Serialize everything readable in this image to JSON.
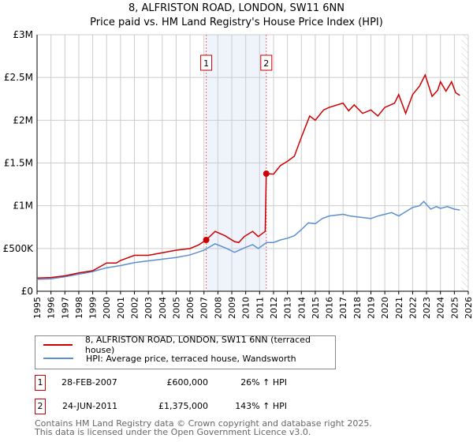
{
  "title_line1": "8, ALFRISTON ROAD, LONDON, SW11 6NN",
  "title_line2": "Price paid vs. HM Land Registry's House Price Index (HPI)",
  "chart_data": {
    "type": "line",
    "xlim": [
      1995,
      2026
    ],
    "ylim": [
      0,
      3000000
    ],
    "x_ticks": [
      "1995",
      "1996",
      "1997",
      "1998",
      "1999",
      "2000",
      "2001",
      "2002",
      "2003",
      "2004",
      "2005",
      "2006",
      "2007",
      "2008",
      "2009",
      "2010",
      "2011",
      "2012",
      "2013",
      "2014",
      "2015",
      "2016",
      "2017",
      "2018",
      "2019",
      "2020",
      "2021",
      "2022",
      "2023",
      "2024",
      "2025",
      "2026"
    ],
    "y_ticks": [
      {
        "v": 0,
        "label": "£0"
      },
      {
        "v": 500000,
        "label": "£500K"
      },
      {
        "v": 1000000,
        "label": "£1M"
      },
      {
        "v": 1500000,
        "label": "£1.5M"
      },
      {
        "v": 2000000,
        "label": "£2M"
      },
      {
        "v": 2500000,
        "label": "£2.5M"
      },
      {
        "v": 3000000,
        "label": "£3M"
      }
    ],
    "grid": true,
    "shaded_range": [
      2007.16,
      2011.48
    ],
    "projection_from": 2025.5,
    "series": [
      {
        "name": "8, ALFRISTON ROAD, LONDON, SW11 6NN (terraced house)",
        "color": "#cc0000",
        "x": [
          1995,
          1996,
          1997,
          1998,
          1999,
          2000,
          2000.7,
          2001,
          2002,
          2003,
          2004,
          2005,
          2006,
          2006.6,
          2007.16,
          2007.8,
          2008.5,
          2009.2,
          2009.5,
          2009.9,
          2010.5,
          2010.9,
          2011.4,
          2011.48,
          2012,
          2012.5,
          2013,
          2013.5,
          2014,
          2014.6,
          2015,
          2015.6,
          2016,
          2017,
          2017.4,
          2017.8,
          2018.4,
          2019,
          2019.5,
          2020,
          2020.7,
          2021,
          2021.5,
          2022,
          2022.5,
          2022.9,
          2023.4,
          2023.8,
          2024,
          2024.4,
          2024.8,
          2025.1,
          2025.4
        ],
        "y": [
          155000,
          160000,
          180000,
          215000,
          240000,
          330000,
          330000,
          360000,
          420000,
          420000,
          450000,
          480000,
          500000,
          540000,
          600000,
          700000,
          650000,
          580000,
          570000,
          640000,
          700000,
          640000,
          700000,
          1375000,
          1370000,
          1470000,
          1520000,
          1580000,
          1800000,
          2050000,
          2000000,
          2120000,
          2150000,
          2200000,
          2110000,
          2180000,
          2080000,
          2120000,
          2050000,
          2150000,
          2200000,
          2300000,
          2080000,
          2300000,
          2400000,
          2530000,
          2280000,
          2350000,
          2450000,
          2340000,
          2450000,
          2320000,
          2290000
        ]
      },
      {
        "name": "HPI: Average price, terraced house, Wandsworth",
        "color": "#5b8fd0",
        "x": [
          1995,
          1996,
          1997,
          1998,
          1999,
          2000,
          2001,
          2002,
          2003,
          2004,
          2005,
          2006,
          2007,
          2007.8,
          2008.5,
          2009.2,
          2009.8,
          2010.5,
          2010.9,
          2011.5,
          2012,
          2012.5,
          2013,
          2013.5,
          2014,
          2014.5,
          2015,
          2015.5,
          2016,
          2017,
          2017.5,
          2018,
          2019,
          2019.5,
          2020,
          2020.5,
          2021,
          2021.5,
          2022,
          2022.5,
          2022.8,
          2023.3,
          2023.7,
          2024,
          2024.5,
          2025,
          2025.4
        ],
        "y": [
          140000,
          145000,
          170000,
          200000,
          230000,
          275000,
          300000,
          335000,
          355000,
          375000,
          395000,
          425000,
          480000,
          555000,
          510000,
          455000,
          500000,
          545000,
          500000,
          570000,
          570000,
          600000,
          620000,
          650000,
          720000,
          800000,
          790000,
          850000,
          880000,
          900000,
          880000,
          870000,
          850000,
          880000,
          900000,
          920000,
          880000,
          930000,
          980000,
          1000000,
          1050000,
          960000,
          990000,
          970000,
          990000,
          960000,
          950000
        ]
      }
    ],
    "markers": [
      {
        "label": "1",
        "x": 2007.16,
        "y": 600000
      },
      {
        "label": "2",
        "x": 2011.48,
        "y": 1375000
      }
    ]
  },
  "transactions": [
    {
      "num": "1",
      "date": "28-FEB-2007",
      "price": "£600,000",
      "hpi": "26% ↑ HPI"
    },
    {
      "num": "2",
      "date": "24-JUN-2011",
      "price": "£1,375,000",
      "hpi": "143% ↑ HPI"
    }
  ],
  "footer_line1": "Contains HM Land Registry data © Crown copyright and database right 2025.",
  "footer_line2": "This data is licensed under the Open Government Licence v3.0."
}
